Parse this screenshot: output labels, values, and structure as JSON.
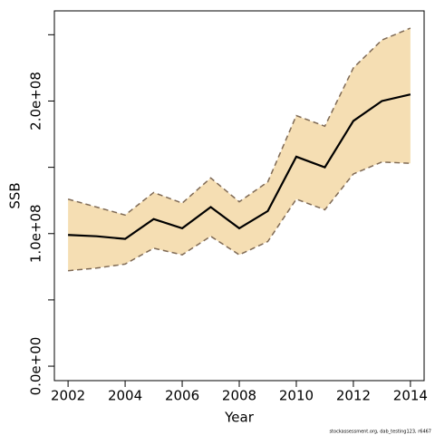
{
  "chart_data": {
    "type": "line",
    "x": [
      2002,
      2003,
      2004,
      2005,
      2006,
      2007,
      2008,
      2009,
      2010,
      2011,
      2012,
      2013,
      2014
    ],
    "values": [
      99000000,
      98000000,
      96000000,
      111000000,
      104000000,
      120000000,
      104000000,
      117000000,
      158000000,
      150000000,
      185000000,
      200000000,
      205000000
    ],
    "upper": [
      126000000,
      120000000,
      114000000,
      131000000,
      123000000,
      142000000,
      124000000,
      139000000,
      189000000,
      181000000,
      225000000,
      246000000,
      255000000
    ],
    "lower": [
      72000000,
      74000000,
      77000000,
      89000000,
      84000000,
      98000000,
      84000000,
      94000000,
      126000000,
      118000000,
      145000000,
      154000000,
      153000000
    ],
    "color": "#000000",
    "band_color": "#f5deb3",
    "bound_color": "#7f6a55",
    "xlabel": "Year",
    "ylabel": "SSB",
    "xlim": [
      2001.52,
      2014.48
    ],
    "xticks": [
      2002,
      2004,
      2006,
      2008,
      2010,
      2012,
      2014
    ],
    "ylim": [
      -10900000,
      268000000
    ],
    "yticks": [
      {
        "value": 0,
        "label": "0.0e+00"
      },
      {
        "value": 100000000,
        "label": "1.0e+08"
      },
      {
        "value": 200000000,
        "label": "2.0e+08"
      }
    ],
    "yminor_ticks": [
      50000000,
      150000000,
      250000000
    ],
    "footnote": "stockassessment.org, dab_testing123, r6467"
  }
}
